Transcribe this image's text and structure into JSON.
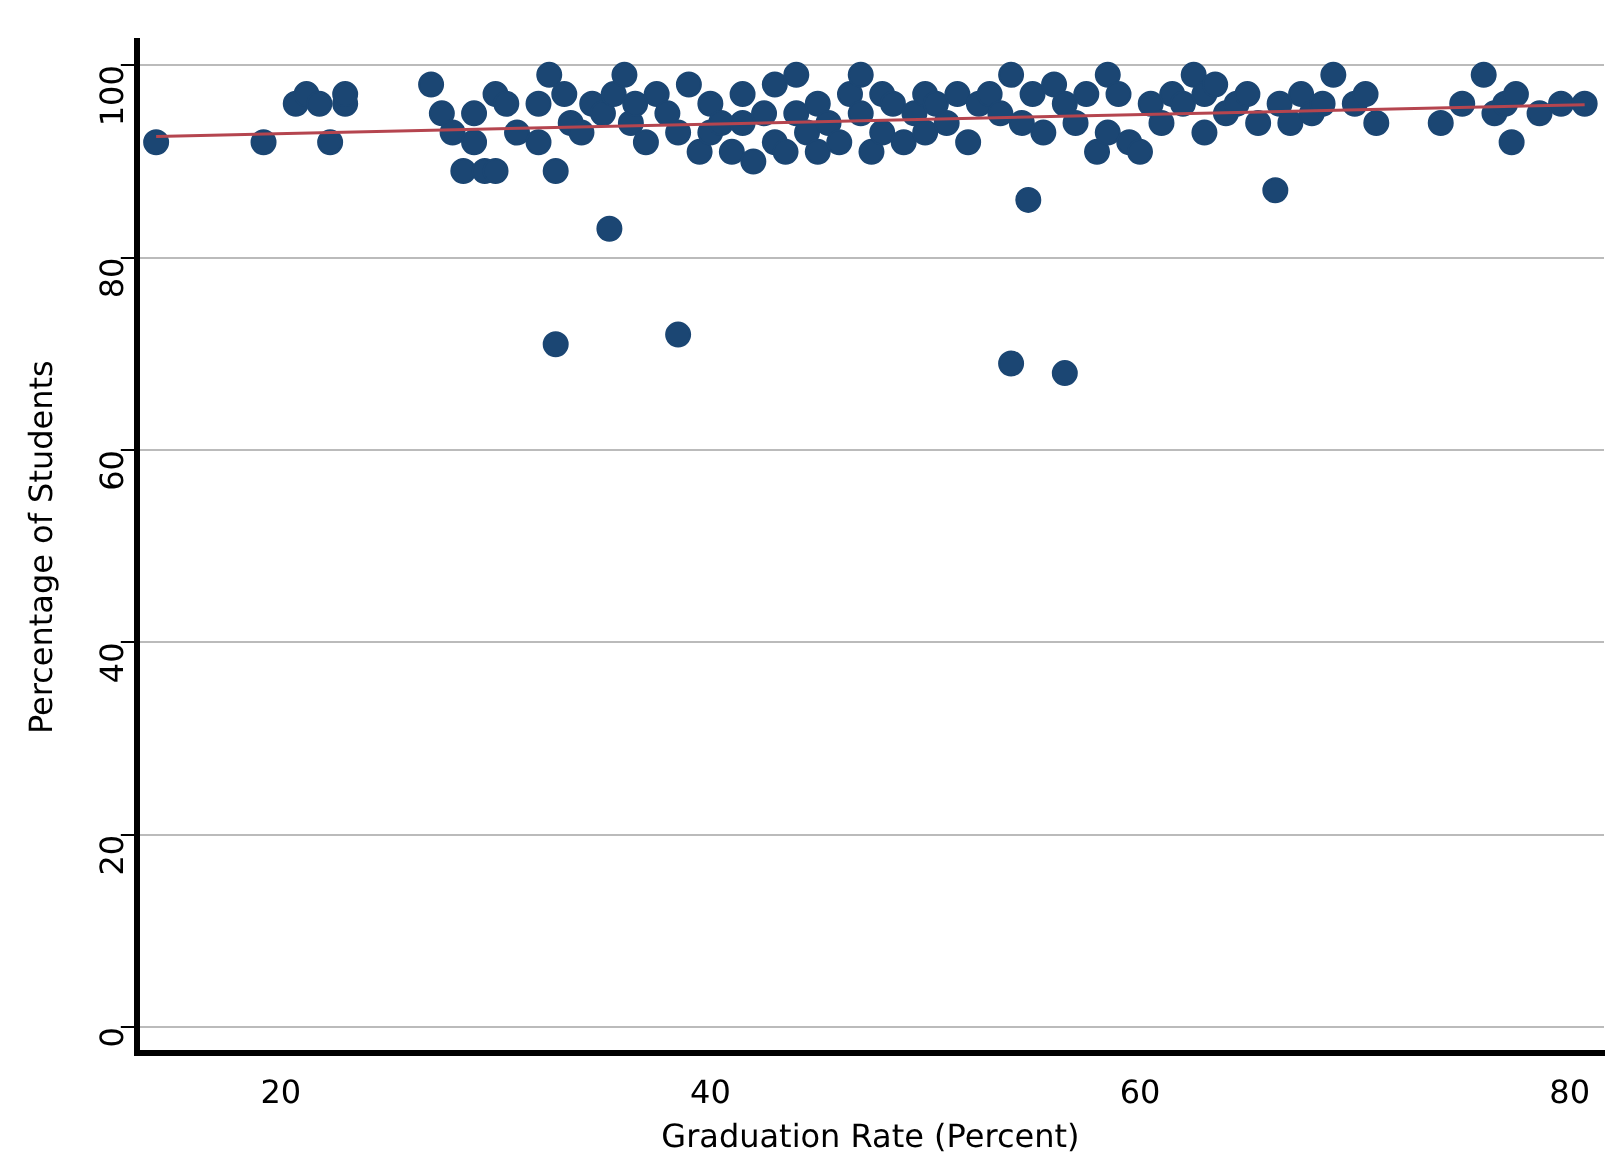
{
  "chart_data": {
    "type": "scatter",
    "xlabel": "Graduation Rate (Percent)",
    "ylabel": "Percentage of Students",
    "xlim": [
      13.3,
      81.6
    ],
    "xticks": [
      20,
      40,
      60,
      80
    ],
    "ylim": [
      -2.7,
      102.5
    ],
    "yticks": [
      0,
      20,
      40,
      60,
      80,
      100
    ],
    "grid": "y",
    "legend": false,
    "marker": "circle",
    "series": [
      {
        "type": "scatter",
        "color": "#1b4673",
        "x": [
          14.2,
          19.2,
          20.7,
          21.2,
          21.8,
          22.3,
          23,
          23,
          27,
          27.5,
          28,
          28.5,
          29,
          29.5,
          29,
          30,
          30,
          30.5,
          31,
          32,
          32,
          32.5,
          32.8,
          32.8,
          33.2,
          33.5,
          34,
          34.5,
          35,
          35.3,
          35.5,
          36,
          36.3,
          36.5,
          37,
          37.5,
          38,
          38.5,
          38.5,
          39,
          39.5,
          40,
          40,
          40.5,
          41,
          41.5,
          41.5,
          42,
          42.5,
          43,
          43,
          43.5,
          44,
          44,
          44.5,
          45,
          45,
          45.5,
          46,
          46.5,
          47,
          47,
          47.5,
          48,
          48,
          48.5,
          49,
          49.5,
          50,
          50,
          50.5,
          51,
          51.5,
          52,
          52.5,
          53,
          53.5,
          54,
          54,
          54.5,
          54.8,
          55,
          55.5,
          56,
          56.5,
          56.5,
          57,
          57.5,
          58,
          58.5,
          58.5,
          59,
          59.5,
          60,
          60.5,
          61,
          61.5,
          62,
          62.5,
          63,
          63,
          63.5,
          64,
          64.5,
          65,
          65.5,
          66.3,
          66.5,
          67,
          67.5,
          68,
          68.5,
          69,
          70,
          70.5,
          71,
          74,
          75,
          76,
          76.5,
          77,
          77.3,
          77.5,
          78.6,
          79.6,
          80.7
        ],
        "values": [
          92,
          92,
          96,
          97,
          96,
          92,
          96,
          97,
          98,
          95,
          93,
          89,
          92,
          89,
          95,
          97,
          89,
          96,
          93,
          96,
          92,
          99,
          89,
          71,
          97,
          94,
          93,
          96,
          95,
          83,
          97,
          99,
          94,
          96,
          92,
          97,
          95,
          72,
          93,
          98,
          91,
          96,
          93,
          94,
          91,
          97,
          94,
          90,
          95,
          98,
          92,
          91,
          99,
          95,
          93,
          96,
          91,
          94,
          92,
          97,
          99,
          95,
          91,
          93,
          97,
          96,
          92,
          95,
          97,
          93,
          96,
          94,
          97,
          92,
          96,
          97,
          95,
          99,
          69,
          94,
          86,
          97,
          93,
          98,
          68,
          96,
          94,
          97,
          91,
          99,
          93,
          97,
          92,
          91,
          96,
          94,
          97,
          96,
          99,
          93,
          97,
          98,
          95,
          96,
          97,
          94,
          87,
          96,
          94,
          97,
          95,
          96,
          99,
          96,
          97,
          94,
          94,
          96,
          99,
          95,
          96,
          92,
          97,
          95,
          96,
          96
        ]
      },
      {
        "type": "line",
        "color": "#b5454f",
        "x": [
          14.2,
          80.7
        ],
        "values": [
          92.6,
          95.9
        ],
        "marker": "none"
      }
    ]
  }
}
